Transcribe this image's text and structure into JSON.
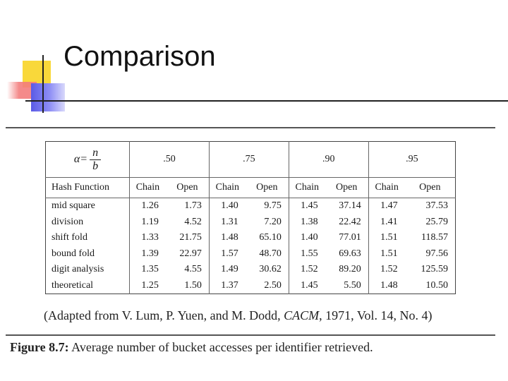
{
  "title": "Comparison",
  "table": {
    "alpha_symbol": "α=",
    "alpha_numerator": "n",
    "alpha_denominator": "b",
    "load_factors": [
      ".50",
      ".75",
      ".90",
      ".95"
    ],
    "row_header": "Hash Function",
    "subheaders": [
      "Chain",
      "Open",
      "Chain",
      "Open",
      "Chain",
      "Open",
      "Chain",
      "Open"
    ],
    "rows": [
      {
        "name": "mid square",
        "values": [
          "1.26",
          "1.73",
          "1.40",
          "9.75",
          "1.45",
          "37.14",
          "1.47",
          "37.53"
        ]
      },
      {
        "name": "division",
        "values": [
          "1.19",
          "4.52",
          "1.31",
          "7.20",
          "1.38",
          "22.42",
          "1.41",
          "25.79"
        ]
      },
      {
        "name": "shift fold",
        "values": [
          "1.33",
          "21.75",
          "1.48",
          "65.10",
          "1.40",
          "77.01",
          "1.51",
          "118.57"
        ]
      },
      {
        "name": "bound fold",
        "values": [
          "1.39",
          "22.97",
          "1.57",
          "48.70",
          "1.55",
          "69.63",
          "1.51",
          "97.56"
        ]
      },
      {
        "name": "digit analysis",
        "values": [
          "1.35",
          "4.55",
          "1.49",
          "30.62",
          "1.52",
          "89.20",
          "1.52",
          "125.59"
        ]
      },
      {
        "name": "theoretical",
        "values": [
          "1.25",
          "1.50",
          "1.37",
          "2.50",
          "1.45",
          "5.50",
          "1.48",
          "10.50"
        ]
      }
    ]
  },
  "caption": {
    "prefix": "(Adapted from V. Lum, P. Yuen, and M. Dodd, ",
    "journal": "CACM",
    "suffix": ", 1971, Vol. 14, No. 4)"
  },
  "figure": {
    "label": "Figure 8.7:",
    "text": " Average number of bucket accesses per identifier retrieved."
  }
}
